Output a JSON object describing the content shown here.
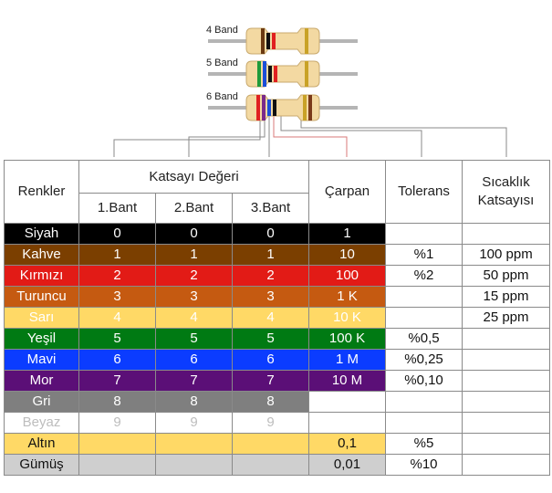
{
  "resistors": [
    {
      "label": "4 Band",
      "bands": [
        "#6b3a12",
        "#111111",
        "#e02020",
        "#c9a227"
      ]
    },
    {
      "label": "5 Band",
      "bands": [
        "#1f9a3b",
        "#1b4fd8",
        "#111111",
        "#e02020",
        "#c9a227"
      ]
    },
    {
      "label": "6 Band",
      "bands": [
        "#e02020",
        "#7a2a8a",
        "#1b4fd8",
        "#111111",
        "#c9a227",
        "#7a3a1a"
      ]
    }
  ],
  "headers": {
    "renkler": "Renkler",
    "katsayi": "Katsayı Değeri",
    "bant1": "1.Bant",
    "bant2": "2.Bant",
    "bant3": "3.Bant",
    "carpan": "Çarpan",
    "tolerans": "Tolerans",
    "sicaklik": "Sıcaklık Katsayısı"
  },
  "rows": [
    {
      "name": "Siyah",
      "d1": "0",
      "d2": "0",
      "d3": "0",
      "mult": "1",
      "tol": "",
      "temp": "",
      "bg": "#000000",
      "fg": "#ffffff"
    },
    {
      "name": "Kahve",
      "d1": "1",
      "d2": "1",
      "d3": "1",
      "mult": "10",
      "tol": "%1",
      "temp": "100 ppm",
      "bg": "#7b3f00",
      "fg": "#ffffff"
    },
    {
      "name": "Kırmızı",
      "d1": "2",
      "d2": "2",
      "d3": "2",
      "mult": "100",
      "tol": "%2",
      "temp": "50 ppm",
      "bg": "#e21b16",
      "fg": "#ffffff"
    },
    {
      "name": "Turuncu",
      "d1": "3",
      "d2": "3",
      "d3": "3",
      "mult": "1 K",
      "tol": "",
      "temp": "15 ppm",
      "bg": "#c55a11",
      "fg": "#ffffff"
    },
    {
      "name": "Sarı",
      "d1": "4",
      "d2": "4",
      "d3": "4",
      "mult": "10 K",
      "tol": "",
      "temp": "25 ppm",
      "bg": "#ffd966",
      "fg": "#ffffff"
    },
    {
      "name": "Yeşil",
      "d1": "5",
      "d2": "5",
      "d3": "5",
      "mult": "100 K",
      "tol": "%0,5",
      "temp": "",
      "bg": "#007a13",
      "fg": "#ffffff"
    },
    {
      "name": "Mavi",
      "d1": "6",
      "d2": "6",
      "d3": "6",
      "mult": "1 M",
      "tol": "%0,25",
      "temp": "",
      "bg": "#0b3cff",
      "fg": "#ffffff"
    },
    {
      "name": "Mor",
      "d1": "7",
      "d2": "7",
      "d3": "7",
      "mult": "10 M",
      "tol": "%0,10",
      "temp": "",
      "bg": "#5b0f77",
      "fg": "#ffffff"
    },
    {
      "name": "Gri",
      "d1": "8",
      "d2": "8",
      "d3": "8",
      "mult": "",
      "tol": "",
      "temp": "",
      "bg": "#7f7f7f",
      "fg": "#ffffff"
    },
    {
      "name": "Beyaz",
      "d1": "9",
      "d2": "9",
      "d3": "9",
      "mult": "",
      "tol": "",
      "temp": "",
      "bg": "#ffffff",
      "fg": "#bdbdbd"
    },
    {
      "name": "Altın",
      "d1": "",
      "d2": "",
      "d3": "",
      "mult": "0,1",
      "tol": "%5",
      "temp": "",
      "bg": "#ffd966",
      "fg": "#111111"
    },
    {
      "name": "Gümüş",
      "d1": "",
      "d2": "",
      "d3": "",
      "mult": "0,01",
      "tol": "%10",
      "temp": "",
      "bg": "#cfcfcf",
      "fg": "#111111"
    }
  ]
}
